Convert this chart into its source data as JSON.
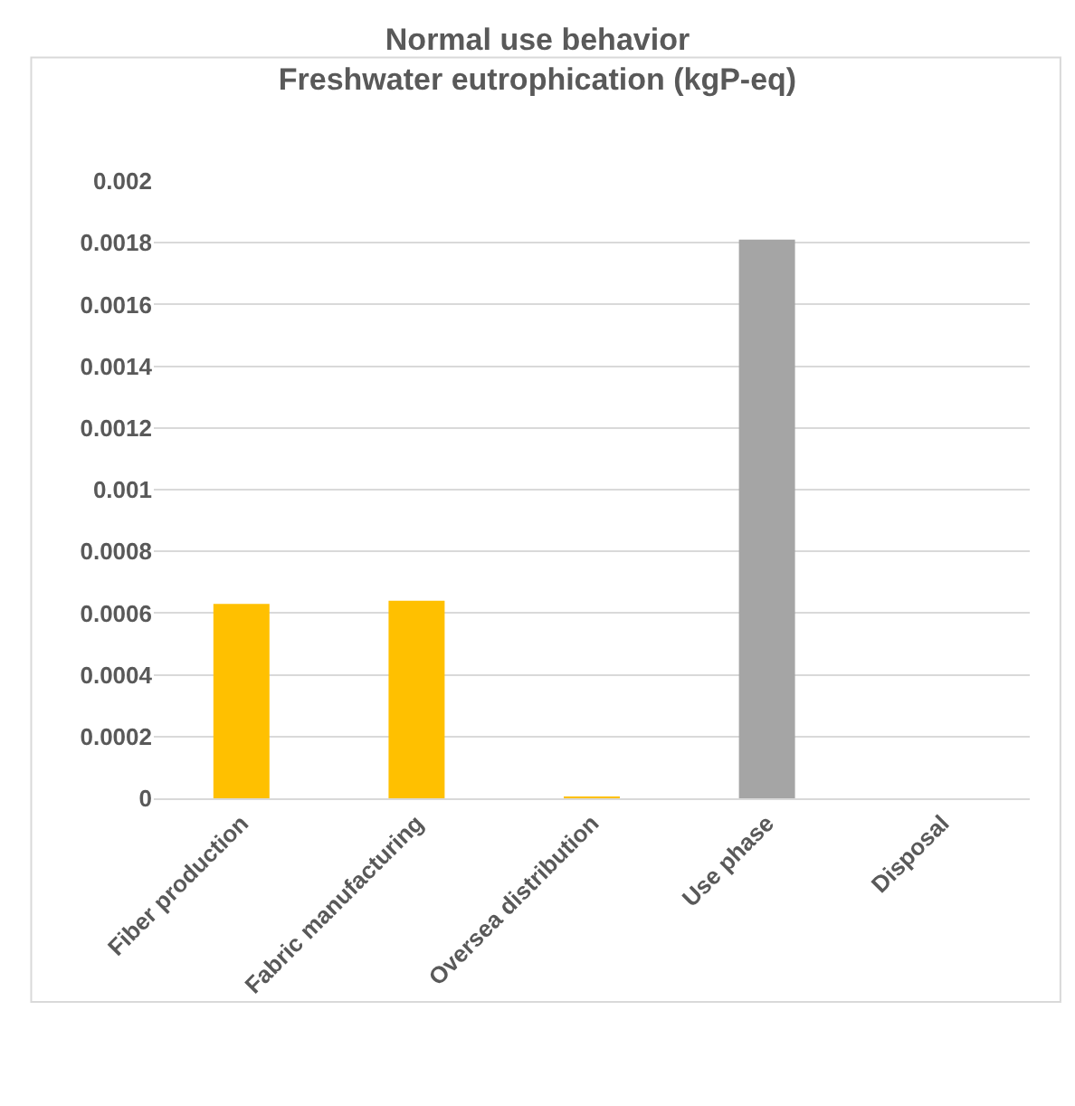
{
  "chart_data": {
    "type": "bar",
    "title": "Normal use behavior\nFreshwater eutrophication (kgP-eq)",
    "categories": [
      "Fiber production",
      "Fabric manufacturing",
      "Oversea distribution",
      "Use phase",
      "Disposal"
    ],
    "values": [
      0.00063,
      0.00064,
      5e-06,
      0.00181,
      0
    ],
    "colors": [
      "#ffc000",
      "#ffc000",
      "#ffc000",
      "#a5a5a5",
      "#ffc000"
    ],
    "ylim": [
      0,
      0.002
    ],
    "yticks": [
      0,
      0.0002,
      0.0004,
      0.0006,
      0.0008,
      0.001,
      0.0012,
      0.0014,
      0.0016,
      0.0018,
      0.002
    ],
    "grid": "y",
    "legend": false
  }
}
